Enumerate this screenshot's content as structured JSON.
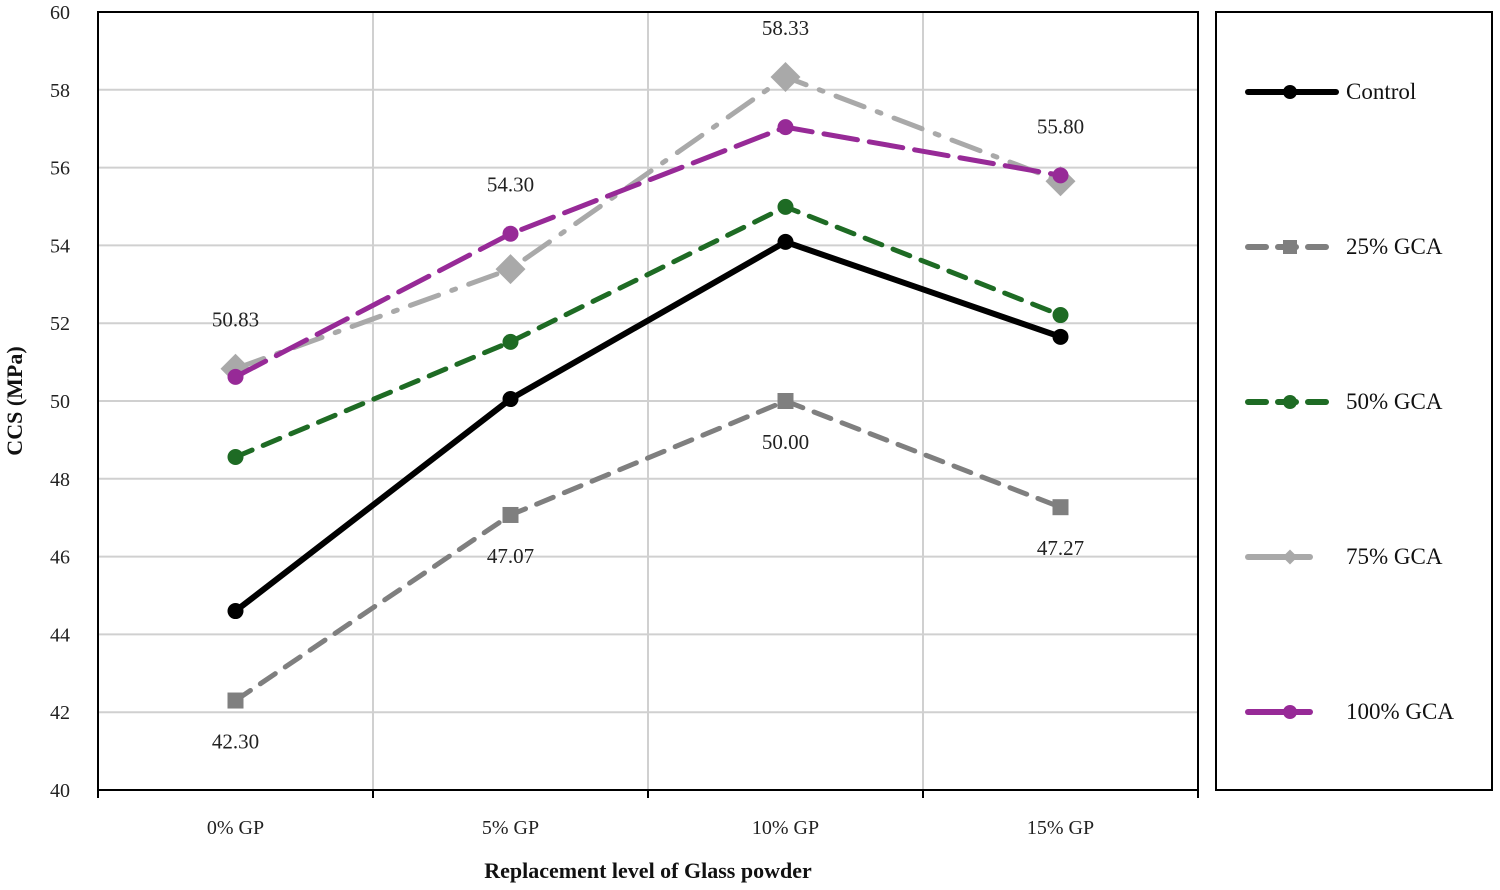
{
  "chart_data": {
    "type": "line",
    "title": "",
    "xlabel": "Replacement level of Glass powder",
    "ylabel": "CCS (MPa)",
    "ylim": [
      40,
      60
    ],
    "ytick_step": 2,
    "grid": true,
    "legend_position": "right",
    "categories": [
      "0% GP",
      "5% GP",
      "10% GP",
      "15% GP"
    ],
    "series": [
      {
        "name": "Control",
        "values": [
          44.6,
          50.05,
          54.09,
          51.65
        ],
        "color": "#000000",
        "dash": "solid",
        "marker": "circle"
      },
      {
        "name": "25% GCA",
        "values": [
          42.3,
          47.07,
          50.0,
          47.27
        ],
        "color": "#7f7f7f",
        "dash": "dash",
        "marker": "square"
      },
      {
        "name": "50% GCA",
        "values": [
          48.56,
          51.52,
          54.99,
          52.21
        ],
        "color": "#1e6b24",
        "dash": "dash",
        "marker": "circle"
      },
      {
        "name": "75% GCA",
        "values": [
          50.83,
          53.39,
          58.33,
          55.65
        ],
        "color": "#a9a9a9",
        "dash": "dashdot",
        "marker": "diamond"
      },
      {
        "name": "100% GCA",
        "values": [
          50.62,
          54.3,
          57.04,
          55.8
        ],
        "color": "#972a97",
        "dash": "longdash",
        "marker": "circle"
      }
    ],
    "data_labels": [
      {
        "series": 3,
        "point": 0,
        "text": "50.83",
        "side": "above"
      },
      {
        "series": 4,
        "point": 1,
        "text": "54.30",
        "side": "above"
      },
      {
        "series": 3,
        "point": 2,
        "text": "58.33",
        "side": "above"
      },
      {
        "series": 4,
        "point": 3,
        "text": "55.80",
        "side": "above"
      },
      {
        "series": 1,
        "point": 0,
        "text": "42.30",
        "side": "below"
      },
      {
        "series": 1,
        "point": 1,
        "text": "47.07",
        "side": "below"
      },
      {
        "series": 1,
        "point": 2,
        "text": "50.00",
        "side": "below"
      },
      {
        "series": 1,
        "point": 3,
        "text": "47.27",
        "side": "below"
      }
    ]
  }
}
